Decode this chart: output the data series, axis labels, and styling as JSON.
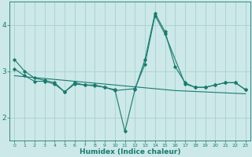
{
  "x": [
    0,
    1,
    2,
    3,
    4,
    5,
    6,
    7,
    8,
    9,
    10,
    11,
    12,
    13,
    14,
    15,
    16,
    17,
    18,
    19,
    20,
    21,
    22,
    23
  ],
  "line1": [
    3.25,
    3.0,
    2.85,
    2.8,
    2.75,
    2.55,
    2.75,
    2.7,
    2.7,
    2.65,
    2.6,
    1.7,
    2.6,
    3.25,
    4.25,
    3.85,
    3.1,
    2.75,
    2.65,
    2.65,
    2.7,
    2.75,
    2.75,
    2.6
  ],
  "line2": [
    3.05,
    2.9,
    2.78,
    2.78,
    2.72,
    2.55,
    2.72,
    2.7,
    2.68,
    2.65,
    2.58,
    null,
    2.62,
    3.15,
    4.2,
    3.8,
    null,
    2.72,
    2.65,
    2.65,
    2.7,
    2.75,
    2.75,
    2.6
  ],
  "trend": [
    2.9,
    2.88,
    2.86,
    2.84,
    2.82,
    2.8,
    2.78,
    2.76,
    2.74,
    2.72,
    2.7,
    2.68,
    2.66,
    2.64,
    2.62,
    2.6,
    2.58,
    2.57,
    2.56,
    2.55,
    2.54,
    2.53,
    2.52,
    2.51
  ],
  "bg_color": "#cce8e8",
  "line_color": "#1a7a6e",
  "grid_color": "#aad0d0",
  "xlabel": "Humidex (Indice chaleur)",
  "xlim": [
    -0.5,
    23.5
  ],
  "ylim": [
    1.5,
    4.5
  ],
  "yticks": [
    2,
    3,
    4
  ],
  "xticks": [
    0,
    1,
    2,
    3,
    4,
    5,
    6,
    7,
    8,
    9,
    10,
    11,
    12,
    13,
    14,
    15,
    16,
    17,
    18,
    19,
    20,
    21,
    22,
    23
  ],
  "figsize": [
    3.2,
    2.0
  ],
  "dpi": 100
}
